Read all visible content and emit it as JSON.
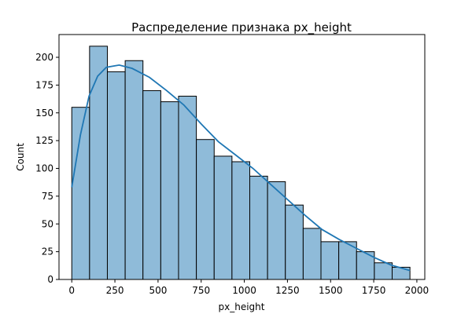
{
  "chart_data": {
    "type": "histogram",
    "title": "Распределение признака px_height",
    "x_label": "px_height",
    "y_label": "Count",
    "bins": [
      0,
      103.2,
      206.3,
      309.5,
      412.6,
      515.8,
      618.9,
      722.1,
      825.3,
      928.4,
      1031.6,
      1134.7,
      1237.9,
      1341.1,
      1444.2,
      1547.4,
      1650.5,
      1753.7,
      1856.8,
      1960
    ],
    "values": [
      155,
      210,
      187,
      197,
      170,
      160,
      165,
      126,
      111,
      106,
      93,
      88,
      67,
      46,
      34,
      34,
      25,
      15,
      11
    ],
    "color": "#8fbbd9",
    "edge_color": "#000000",
    "kde": {
      "color": "#1f77b4",
      "x": [
        0,
        50,
        100,
        150,
        200,
        275,
        350,
        450,
        550,
        650,
        750,
        850,
        950,
        1050,
        1150,
        1250,
        1350,
        1450,
        1550,
        1650,
        1750,
        1850,
        1960
      ],
      "values": [
        83,
        130,
        165,
        183,
        191,
        193,
        190,
        182,
        170,
        157,
        140,
        124,
        112,
        100,
        86,
        72,
        58,
        45,
        36,
        28,
        20,
        13,
        8
      ]
    },
    "xlim": [
      -74,
      2046
    ],
    "ylim": [
      0,
      220.5
    ],
    "xticks": [
      0,
      250,
      500,
      750,
      1000,
      1250,
      1500,
      1750,
      2000
    ],
    "yticks": [
      0,
      25,
      50,
      75,
      100,
      125,
      150,
      175,
      200
    ]
  }
}
